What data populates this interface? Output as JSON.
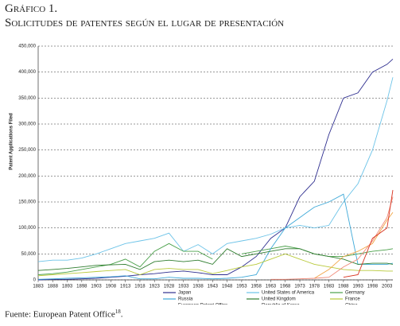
{
  "heading": {
    "label": "Gráfico 1.",
    "title": "Solicitudes de patentes según el lugar de presentación"
  },
  "chart_data": {
    "type": "line",
    "y_label": "Patent Applications Filed",
    "x": [
      1883,
      1888,
      1893,
      1898,
      1903,
      1908,
      1913,
      1918,
      1923,
      1928,
      1933,
      1938,
      1943,
      1948,
      1953,
      1958,
      1963,
      1968,
      1973,
      1978,
      1983,
      1988,
      1993,
      1998,
      2003,
      2005
    ],
    "xlim": [
      1883,
      2005
    ],
    "xticks": [
      1883,
      1888,
      1893,
      1898,
      1903,
      1908,
      1913,
      1918,
      1923,
      1928,
      1933,
      1938,
      1943,
      1948,
      1953,
      1958,
      1963,
      1968,
      1973,
      1978,
      1983,
      1988,
      1993,
      1998,
      2003
    ],
    "ylim": [
      0,
      450000
    ],
    "yticks": [
      0,
      {
        "value": 50000,
        "label": "50,000"
      },
      {
        "value": 100000,
        "label": "100,000"
      },
      {
        "value": 150000,
        "label": "150,000"
      },
      {
        "value": 200000,
        "label": "200,000"
      },
      {
        "value": 250000,
        "label": "250,000"
      },
      {
        "value": 300000,
        "label": "300,000"
      },
      {
        "value": 350000,
        "label": "350,000"
      },
      {
        "value": 400000,
        "label": "400,000"
      },
      {
        "value": 450000,
        "label": "450,000"
      }
    ],
    "grid": true,
    "series": [
      {
        "name": "Japan",
        "color": "#2e2e8f",
        "values": [
          0,
          1000,
          1000,
          2000,
          3000,
          5000,
          7000,
          10000,
          12000,
          15000,
          17000,
          14000,
          10000,
          10000,
          25000,
          45000,
          80000,
          100000,
          160000,
          190000,
          280000,
          350000,
          360000,
          400000,
          415000,
          425000
        ]
      },
      {
        "name": "United States of America",
        "color": "#6cc3e8",
        "values": [
          35000,
          38000,
          38000,
          42000,
          50000,
          60000,
          70000,
          75000,
          80000,
          90000,
          55000,
          68000,
          50000,
          70000,
          75000,
          80000,
          88000,
          100000,
          105000,
          100000,
          105000,
          150000,
          185000,
          250000,
          345000,
          390000
        ]
      },
      {
        "name": "Germany",
        "color": "#4aa04a",
        "values": [
          10000,
          12000,
          15000,
          20000,
          25000,
          30000,
          40000,
          25000,
          55000,
          70000,
          55000,
          55000,
          40000,
          null,
          50000,
          55000,
          60000,
          65000,
          60000,
          50000,
          45000,
          45000,
          50000,
          55000,
          58000,
          60000
        ]
      },
      {
        "name": "Russia",
        "color": "#3fa9d8",
        "values": [
          1000,
          2000,
          3000,
          4000,
          5000,
          6000,
          8000,
          2000,
          2000,
          5000,
          3000,
          3000,
          2000,
          3000,
          5000,
          10000,
          60000,
          100000,
          120000,
          140000,
          150000,
          165000,
          30000,
          30000,
          30000,
          32000
        ]
      },
      {
        "name": "United Kingdom",
        "color": "#2f7d2f",
        "values": [
          18000,
          20000,
          22000,
          25000,
          28000,
          29000,
          30000,
          20000,
          35000,
          38000,
          35000,
          38000,
          30000,
          60000,
          45000,
          50000,
          55000,
          60000,
          60000,
          50000,
          45000,
          40000,
          30000,
          32000,
          32000,
          30000
        ]
      },
      {
        "name": "France",
        "color": "#b8c93a",
        "values": [
          8000,
          10000,
          12000,
          14000,
          16000,
          18000,
          20000,
          10000,
          20000,
          22000,
          20000,
          20000,
          12000,
          18000,
          25000,
          30000,
          40000,
          50000,
          40000,
          30000,
          25000,
          20000,
          18000,
          18000,
          17000,
          17000
        ]
      },
      {
        "name": "European Patent Office",
        "color": "#f2a444",
        "values": [
          null,
          null,
          null,
          null,
          null,
          null,
          null,
          null,
          null,
          null,
          null,
          null,
          null,
          null,
          null,
          null,
          null,
          null,
          null,
          3000,
          20000,
          45000,
          55000,
          70000,
          115000,
          130000
        ]
      },
      {
        "name": "Republic of Korea",
        "color": "#f08a78",
        "values": [
          null,
          null,
          null,
          null,
          null,
          null,
          null,
          null,
          null,
          null,
          null,
          null,
          null,
          null,
          null,
          null,
          1000,
          1000,
          2000,
          3000,
          5000,
          25000,
          40000,
          75000,
          120000,
          160000
        ]
      },
      {
        "name": "China",
        "color": "#d8321e",
        "values": [
          null,
          null,
          null,
          null,
          null,
          null,
          null,
          null,
          null,
          null,
          null,
          null,
          null,
          null,
          null,
          null,
          null,
          null,
          null,
          null,
          null,
          5000,
          10000,
          80000,
          100000,
          173000
        ]
      }
    ]
  },
  "footer": {
    "text": "Fuente: European Patent Office",
    "note": "18",
    "end": "."
  }
}
